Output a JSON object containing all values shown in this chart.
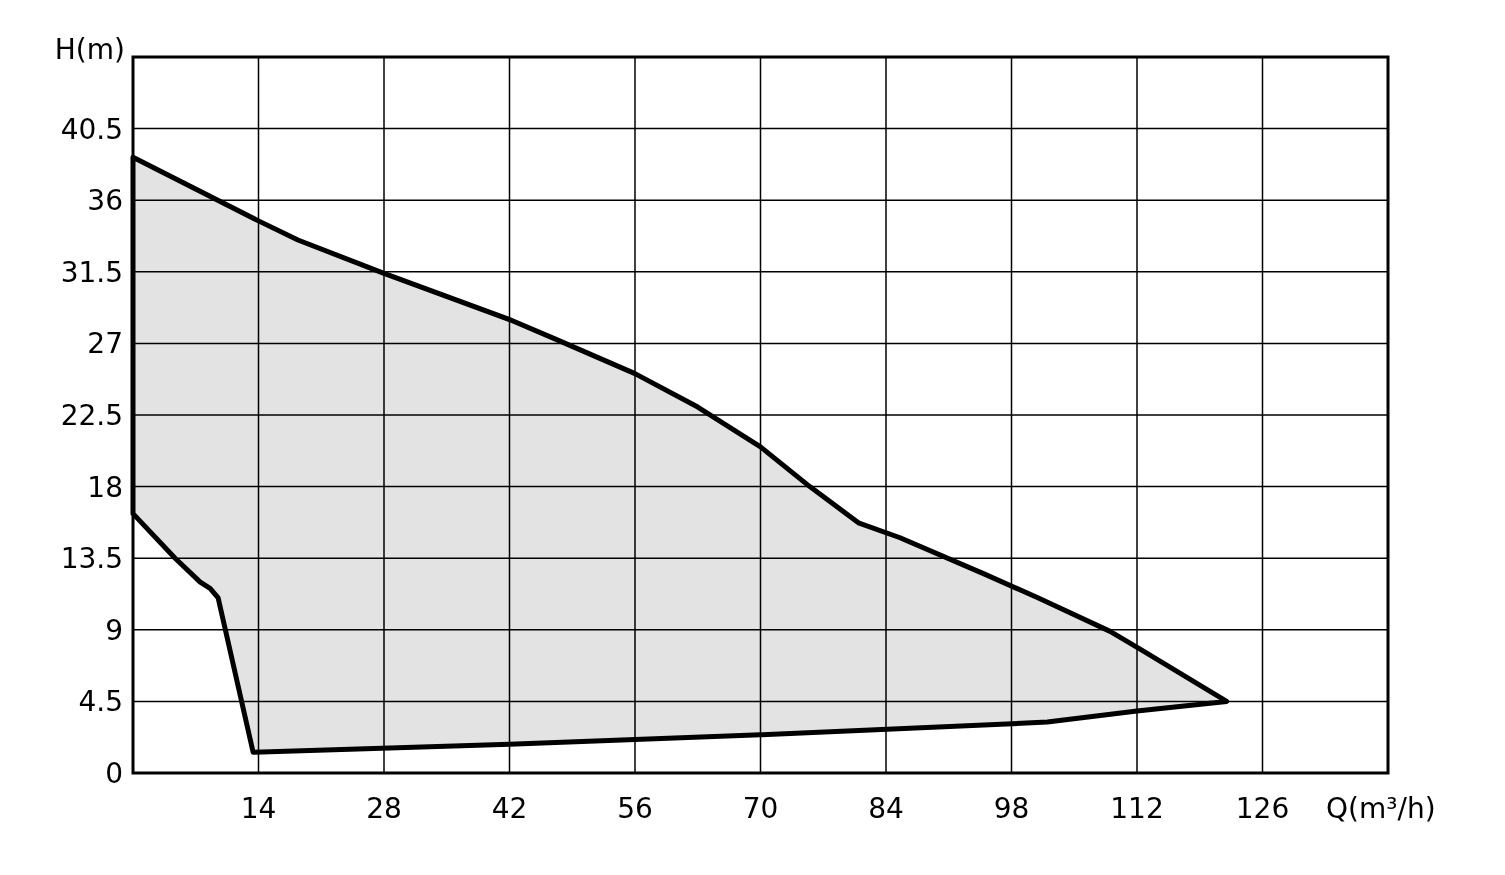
{
  "chart_data": {
    "type": "area",
    "xlabel": "Q(m³/h)",
    "ylabel": "H(m)",
    "xlim": [
      0,
      140
    ],
    "xticks": [
      14,
      28,
      42,
      56,
      70,
      84,
      98,
      112,
      126
    ],
    "ylim": [
      0,
      45
    ],
    "yticks": [
      0,
      4.5,
      9,
      13.5,
      18,
      22.5,
      27,
      31.5,
      36,
      40.5
    ],
    "grid": true,
    "series": [
      {
        "color": "#e3e3e3",
        "x": [
          0,
          14,
          18.4,
          28,
          42,
          47,
          56,
          63,
          70,
          75.5,
          81,
          85.5,
          95,
          101,
          109,
          112.3,
          122,
          112,
          102,
          70,
          42,
          13.4,
          9.5,
          8.6,
          7.5,
          4.7,
          0
        ],
        "values": [
          38.7,
          34.7,
          33.5,
          31.4,
          28.5,
          27.3,
          25.1,
          23,
          20.5,
          18,
          15.7,
          14.8,
          12.5,
          11,
          8.9,
          7.8,
          4.5,
          3.9,
          3.2,
          2.4,
          1.8,
          1.3,
          11,
          11.6,
          12,
          13.5,
          16.3
        ]
      }
    ]
  }
}
